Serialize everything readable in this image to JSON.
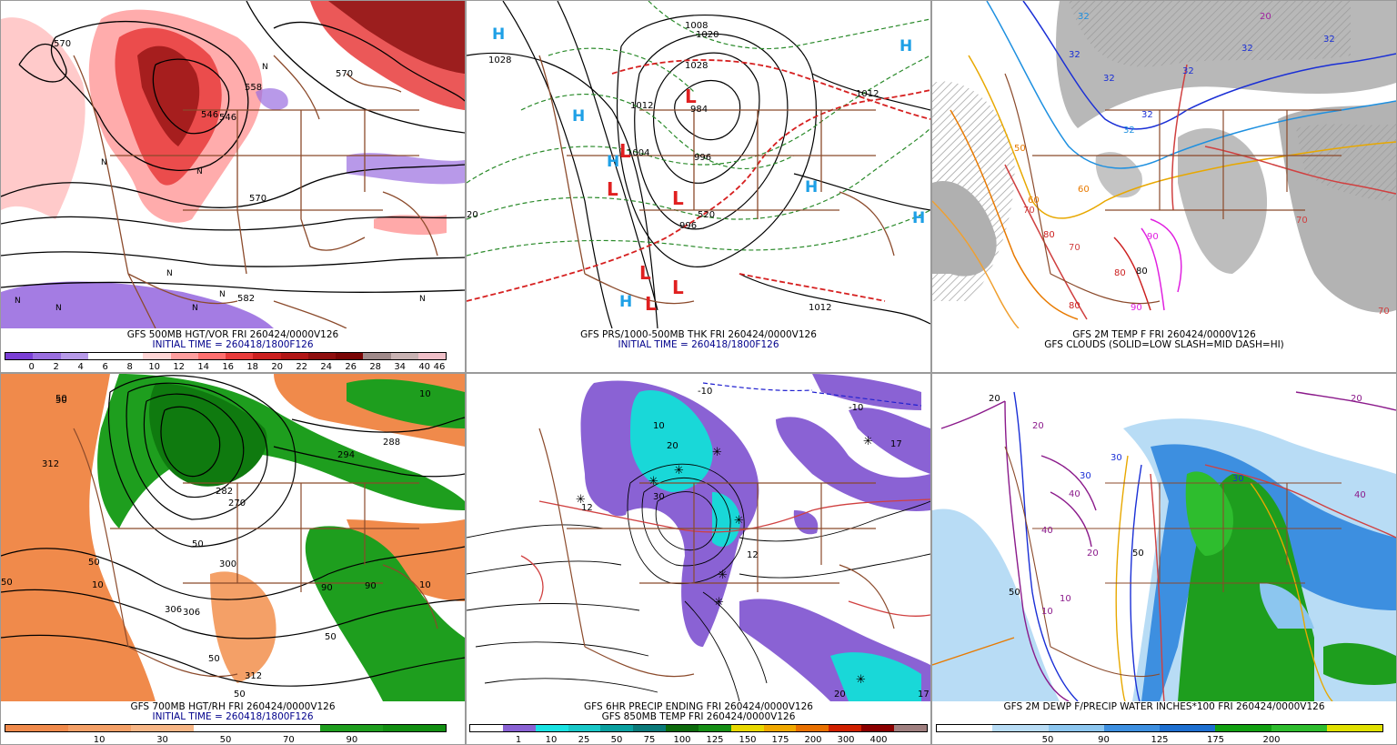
{
  "panels": [
    {
      "caption1": "GFS 500MB HGT/VOR FRI 260424/0000V126",
      "caption2": "INITIAL TIME = 260418/1800F126",
      "colorbar": [
        "#7b3fd6",
        "#9a6ee0",
        "#b79ae9",
        "#ffffff",
        "#ffffff",
        "#ffd6d6",
        "#ff9e9e",
        "#ff6f6f",
        "#e83b3b",
        "#cc1f1f",
        "#b11616",
        "#8f0f0f",
        "#7a0606",
        "#a08a8a",
        "#c9b3b3",
        "#f0c0c8"
      ],
      "ticks": [
        "0",
        "2",
        "4",
        "6",
        "8",
        "10",
        "12",
        "14",
        "16",
        "18",
        "20",
        "22",
        "24",
        "26",
        "28",
        "34",
        "40",
        "46"
      ],
      "labels": [
        "570",
        "558",
        "546",
        "570",
        "582",
        "570",
        "546"
      ],
      "markers": [
        "N",
        "N",
        "N",
        "N",
        "N",
        "N",
        "N",
        "N",
        "N"
      ]
    },
    {
      "caption1": "GFS PRS/1000-500MB THK FRI 260424/0000V126",
      "caption2": "INITIAL TIME = 260418/1800F126",
      "labels": [
        "1028",
        "1020",
        "1028",
        "1012",
        "1012",
        "996",
        "996",
        "984",
        "1012",
        "520",
        "1004",
        "20",
        "1008"
      ],
      "highs": [
        "H",
        "H",
        "H",
        "H",
        "H",
        "H",
        "H"
      ],
      "lows": [
        "L",
        "L",
        "L",
        "L",
        "L",
        "L",
        "L"
      ]
    },
    {
      "caption1": "GFS 2M TEMP F FRI 260424/0000V126",
      "caption2": "GFS CLOUDS (SOLID=LOW SLASH=MID DASH=HI)",
      "labels": [
        "32",
        "32",
        "32",
        "32",
        "32",
        "32",
        "32",
        "32",
        "20",
        "50",
        "60",
        "70",
        "60",
        "70",
        "80",
        "80",
        "90",
        "90",
        "80",
        "70",
        "80",
        "70"
      ]
    },
    {
      "caption1": "GFS 700MB HGT/RH FRI 260424/0000V126",
      "caption2": "INITIAL TIME = 260418/1800F126",
      "colorbar": [
        "#f08a4b",
        "#f4a067",
        "#f7b686",
        "#ffffff",
        "#ffffff",
        "#1e9e1e",
        "#128f12"
      ],
      "ticks": [
        "10",
        "30",
        "50",
        "70",
        "90"
      ],
      "labels": [
        "50",
        "312",
        "10",
        "50",
        "294",
        "306",
        "300",
        "50",
        "306",
        "50",
        "312",
        "50",
        "10",
        "50",
        "50",
        "90",
        "90",
        "50",
        "10",
        "282",
        "270",
        "288"
      ]
    },
    {
      "caption1": "GFS 6HR PRECIP ENDING FRI 260424/0000V126",
      "caption2": "GFS 850MB TEMP FRI 260424/0000V126",
      "colorbar": [
        "#ffffff",
        "#8a62d4",
        "#19e3e3",
        "#19c8c8",
        "#0aa0a0",
        "#0a7a7a",
        "#0d6b0d",
        "#168f16",
        "#e8d800",
        "#f0a800",
        "#e87000",
        "#d02000",
        "#8b0000",
        "#a08080"
      ],
      "ticks": [
        "1",
        "10",
        "25",
        "50",
        "75",
        "100",
        "125",
        "150",
        "175",
        "200",
        "300",
        "400"
      ],
      "labels": [
        "-10",
        "-10",
        "10",
        "20",
        "30",
        "12",
        "12",
        "17",
        "17",
        "20"
      ]
    },
    {
      "caption1": "GFS 2M DEWP F/PRECIP WATER INCHES*100 FRI 260424/0000V126",
      "caption2": "",
      "colorbar": [
        "#ffffff",
        "#b8dcf5",
        "#8cc6ef",
        "#3d8fe0",
        "#1d6fd0",
        "#11a011",
        "#2ebd2e",
        "#e0e000"
      ],
      "ticks": [
        "50",
        "90",
        "125",
        "175",
        "200"
      ],
      "labels": [
        "20",
        "30",
        "30",
        "50",
        "40",
        "40",
        "10",
        "30",
        "20",
        "20",
        "50",
        "20",
        "40",
        "10"
      ]
    }
  ]
}
